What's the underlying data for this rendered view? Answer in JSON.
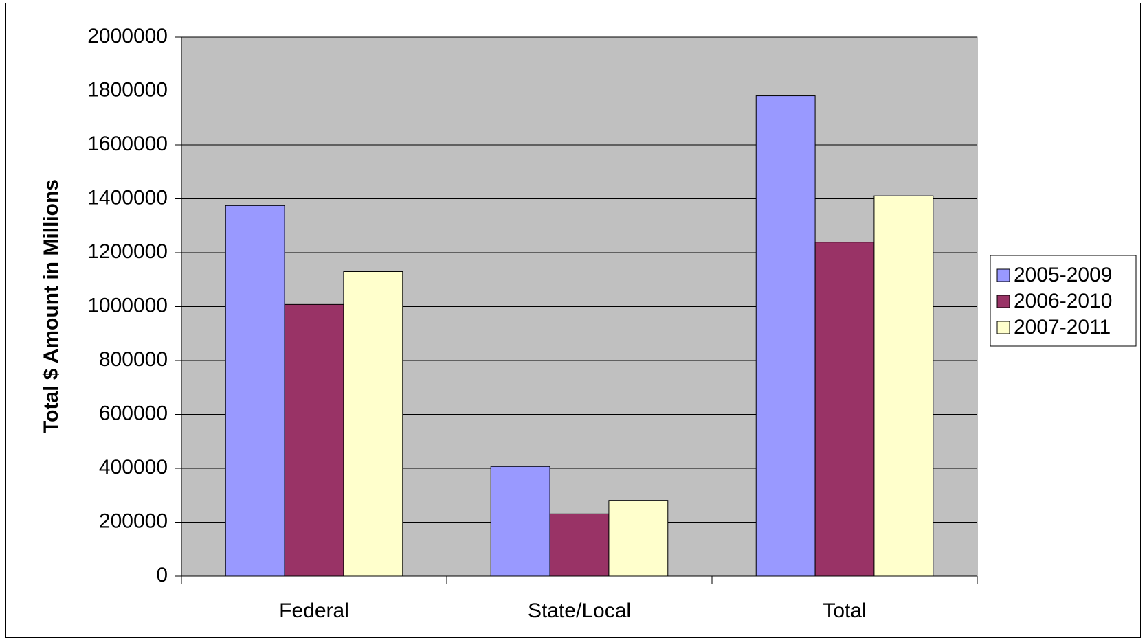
{
  "chart_data": {
    "type": "bar",
    "title": "",
    "xlabel": "",
    "ylabel": "Total $ Amount in Millions",
    "ylim": [
      0,
      2000000
    ],
    "yticks": [
      0,
      200000,
      400000,
      600000,
      800000,
      1000000,
      1200000,
      1400000,
      1600000,
      1800000,
      2000000
    ],
    "grid": true,
    "legend_position": "right",
    "categories": [
      "Federal",
      "State/Local",
      "Total"
    ],
    "series": [
      {
        "name": "2005-2009",
        "color": "#9999FF",
        "values": [
          1375000,
          407000,
          1782000
        ]
      },
      {
        "name": "2006-2010",
        "color": "#993366",
        "values": [
          1008000,
          231000,
          1239000
        ]
      },
      {
        "name": "2007-2011",
        "color": "#FFFFCC",
        "values": [
          1130000,
          281000,
          1411000
        ]
      }
    ],
    "plot_background": "#C0C0C0"
  }
}
